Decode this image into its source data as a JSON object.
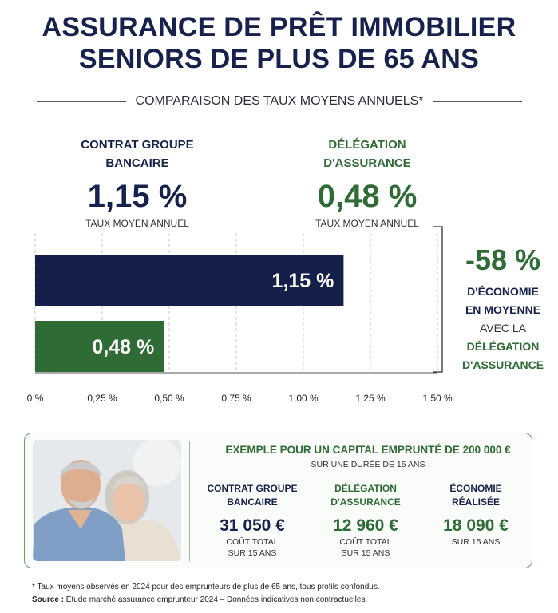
{
  "header": {
    "title_line1": "ASSURANCE DE PRÊT IMMOBILIER",
    "title_line2": "SENIORS DE PLUS DE 65 ANS",
    "subtitle": "COMPARAISON DES TAUX MOYENS ANNUELS*"
  },
  "compare": {
    "groupe": {
      "label1": "CONTRAT GROUPE",
      "label2": "BANCAIRE",
      "rate": "1,15 %",
      "caption": "TAUX MOYEN ANNUEL"
    },
    "delegation": {
      "label1": "DÉLÉGATION",
      "label2": "D'ASSURANCE",
      "rate": "0,48 %",
      "caption": "TAUX MOYEN ANNUEL"
    }
  },
  "savings": {
    "pct": "-58 %",
    "line1": "D'ÉCONOMIE",
    "line2": "EN MOYENNE",
    "line3": "AVEC LA",
    "line4": "DÉLÉGATION",
    "line5": "D'ASSURANCE"
  },
  "chart_data": {
    "type": "bar",
    "orientation": "horizontal",
    "categories": [
      "Contrat groupe bancaire",
      "Délégation d'assurance"
    ],
    "values": [
      1.15,
      0.48
    ],
    "data_labels": [
      "1,15 %",
      "0,48 %"
    ],
    "colors": [
      "#14204a",
      "#2f6b34"
    ],
    "xlim": [
      0,
      1.5
    ],
    "xticks": [
      0,
      0.25,
      0.5,
      0.75,
      1.0,
      1.25,
      1.5
    ],
    "xtick_labels": [
      "0 %",
      "0,25 %",
      "0,50 %",
      "0,75 %",
      "1,00 %",
      "1,25 %",
      "1,50 %"
    ],
    "grid": "vertical dashed"
  },
  "example": {
    "title": "EXEMPLE POUR UN CAPITAL EMPRUNTÉ DE 200 000 €",
    "subtitle": "SUR UNE DURÉE DE 15 ANS",
    "cols": [
      {
        "h1": "CONTRAT GROUPE",
        "h2": "BANCAIRE",
        "value": "31 050 €",
        "s1": "COÛT TOTAL",
        "s2": "SUR 15 ANS"
      },
      {
        "h1": "DÉLÉGATION",
        "h2": "D'ASSURANCE",
        "value": "12 960 €",
        "s1": "COÛT TOTAL",
        "s2": "SUR 15 ANS"
      },
      {
        "h1": "ÉCONOMIE",
        "h2": "RÉALISÉE",
        "value": "18 090 €",
        "s1": "SUR 15 ANS",
        "s2": ""
      }
    ]
  },
  "footer": {
    "note": "* Taux moyens observés en 2024 pour des emprunteurs de plus de 65 ans, tous profils confondus.",
    "source_label": "Source :",
    "source_text": " Étude marché assurance emprunteur 2024 – Données indicatives non contractuelles."
  },
  "colors": {
    "navy": "#16224d",
    "green": "#2f6b34",
    "card_border": "#6f9a6f"
  }
}
